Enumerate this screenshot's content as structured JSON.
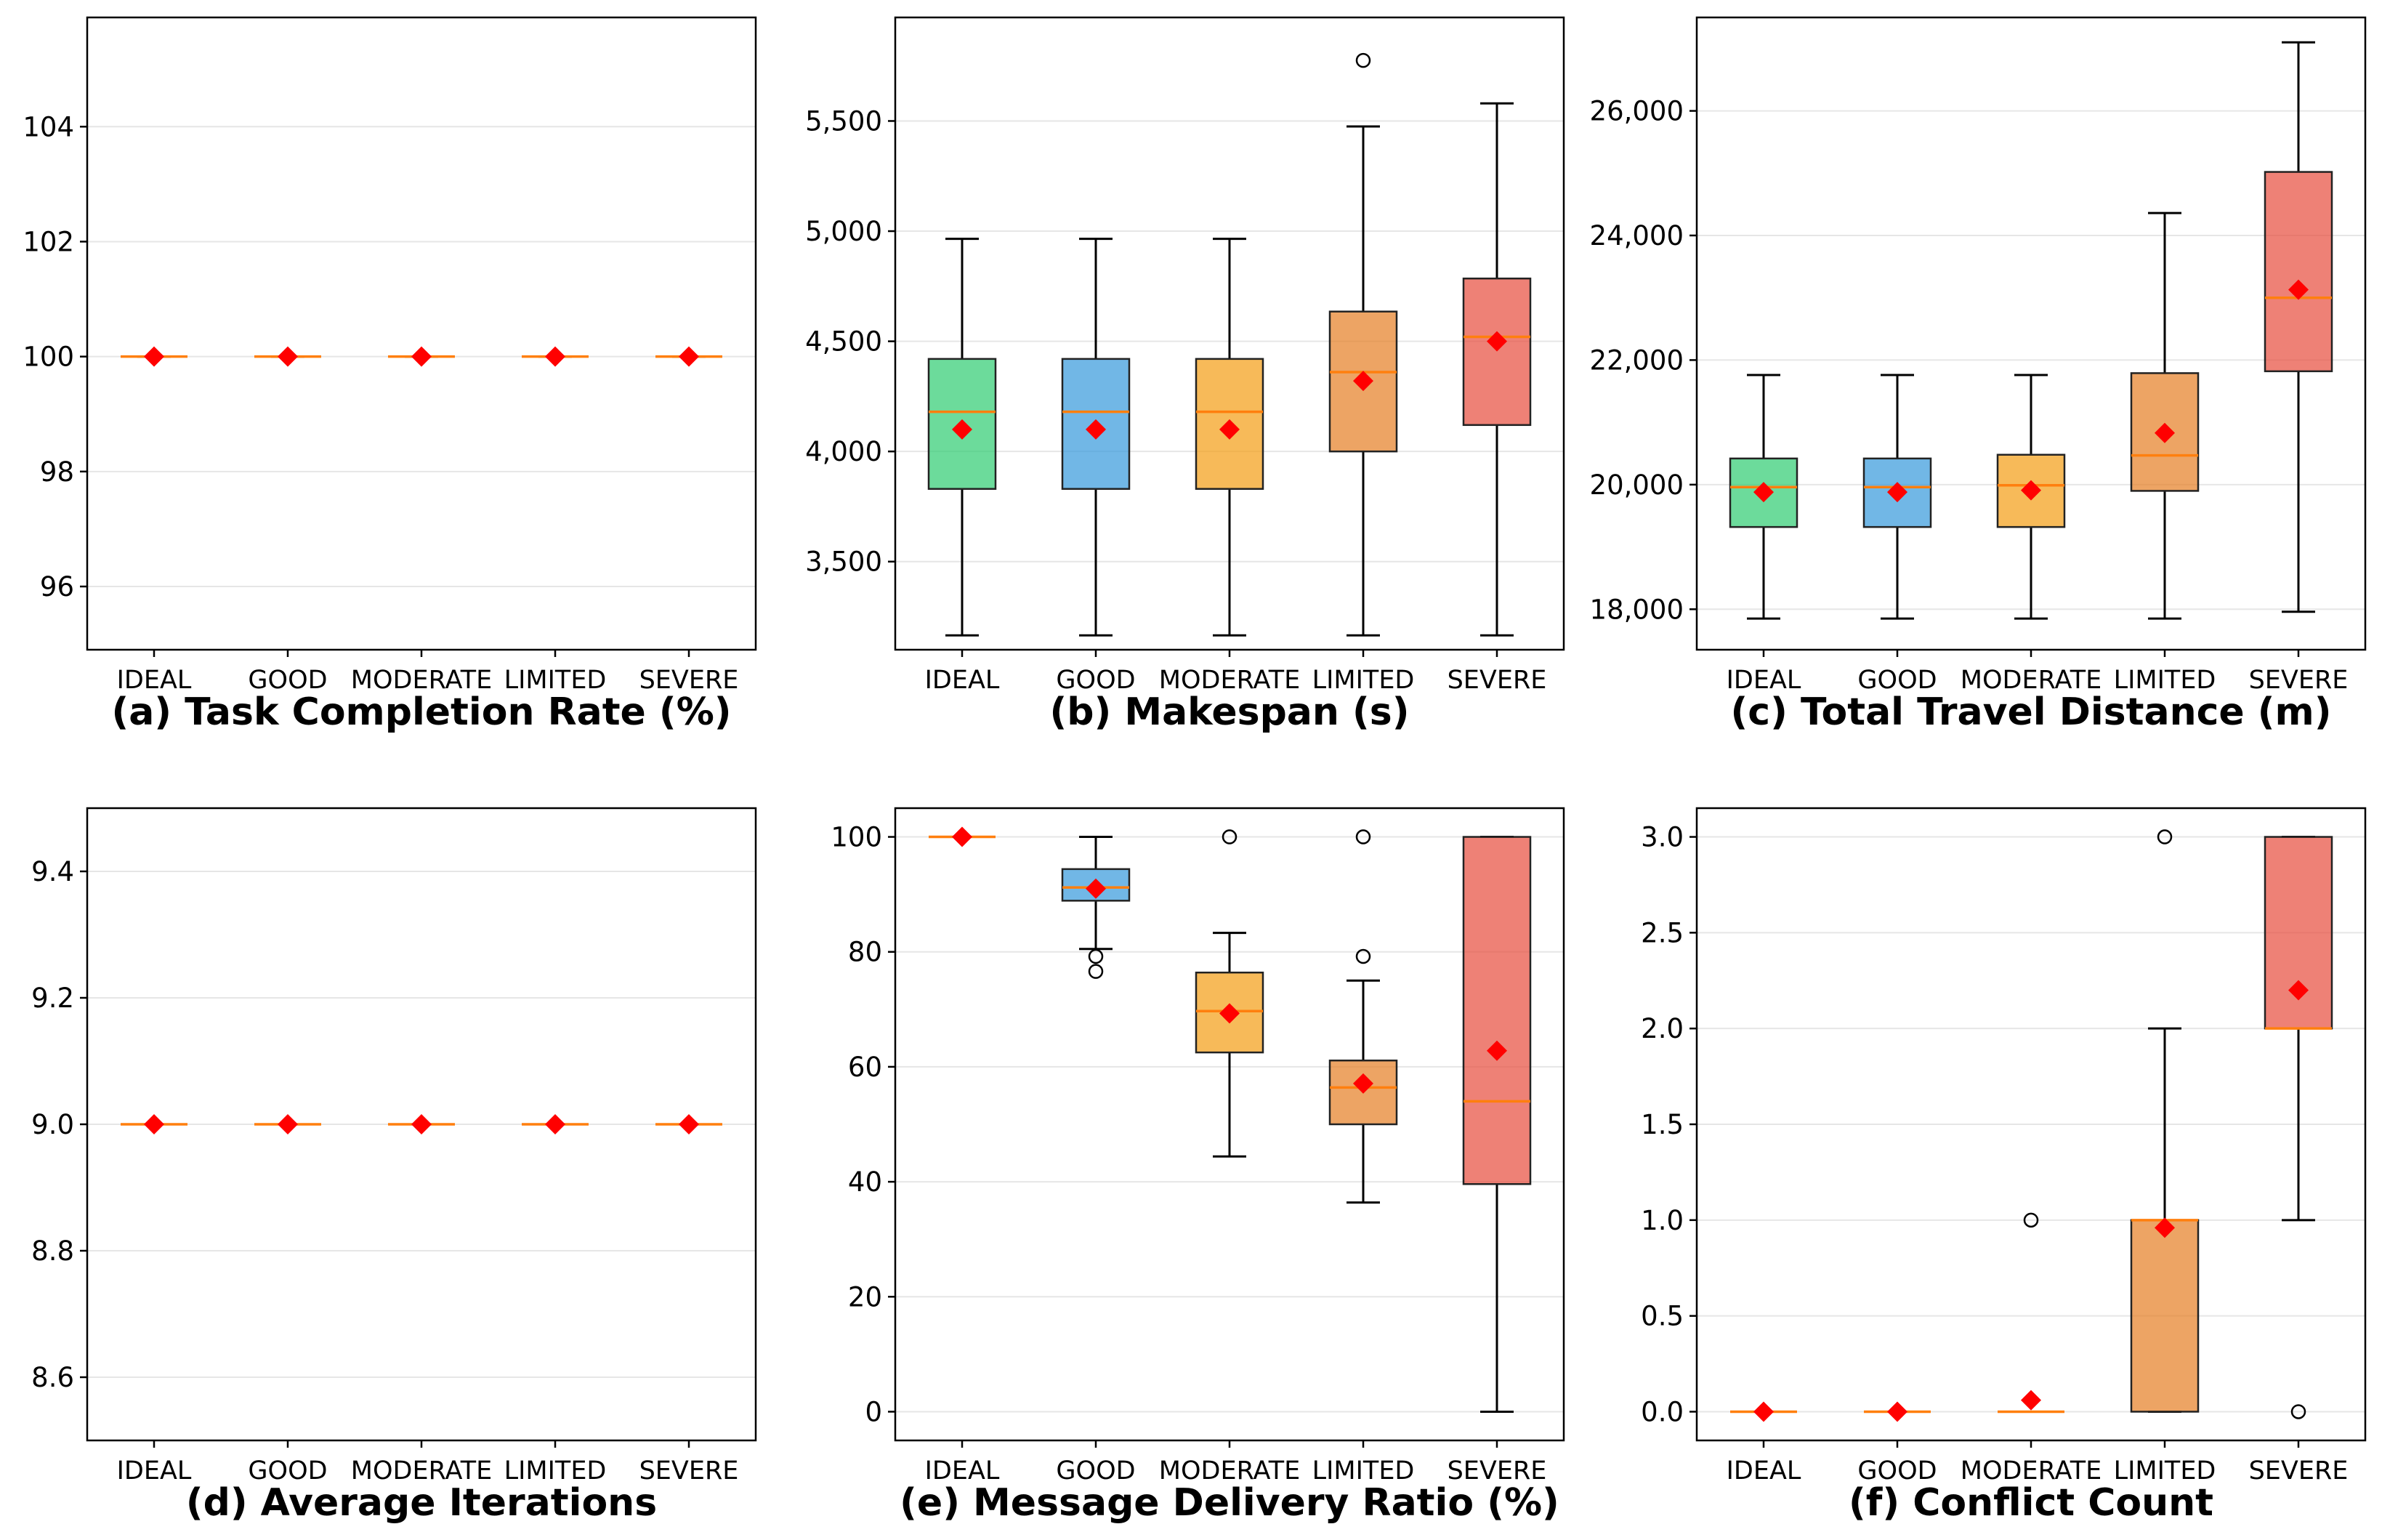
{
  "chart_data": [
    {
      "type": "box",
      "title": "(a) Task Completion Rate (%)",
      "categories": [
        "IDEAL",
        "GOOD",
        "MODERATE",
        "LIMITED",
        "SEVERE"
      ],
      "ylim": [
        94.9,
        105.9
      ],
      "yticks": [
        96,
        98,
        100,
        102,
        104
      ],
      "ytick_labels": [
        "96",
        "98",
        "100",
        "102",
        "104"
      ],
      "colors": [
        "#2ecc71",
        "#3498db",
        "#f39c12",
        "#e67e22",
        "#e74c3c"
      ],
      "boxes": [
        {
          "whislo": 100,
          "q1": 100,
          "med": 100,
          "q3": 100,
          "whishi": 100,
          "mean": 100,
          "fliers": []
        },
        {
          "whislo": 100,
          "q1": 100,
          "med": 100,
          "q3": 100,
          "whishi": 100,
          "mean": 100,
          "fliers": []
        },
        {
          "whislo": 100,
          "q1": 100,
          "med": 100,
          "q3": 100,
          "whishi": 100,
          "mean": 100,
          "fliers": []
        },
        {
          "whislo": 100,
          "q1": 100,
          "med": 100,
          "q3": 100,
          "whishi": 100,
          "mean": 100,
          "fliers": []
        },
        {
          "whislo": 100,
          "q1": 100,
          "med": 100,
          "q3": 100,
          "whishi": 100,
          "mean": 100,
          "fliers": []
        }
      ]
    },
    {
      "type": "box",
      "title": "(b) Makespan (s)",
      "categories": [
        "IDEAL",
        "GOOD",
        "MODERATE",
        "LIMITED",
        "SEVERE"
      ],
      "ylim": [
        3100,
        5970
      ],
      "yticks": [
        3500,
        4000,
        4500,
        5000,
        5500
      ],
      "ytick_labels": [
        "3,500",
        "4,000",
        "4,500",
        "5,000",
        "5,500"
      ],
      "colors": [
        "#2ecc71",
        "#3498db",
        "#f39c12",
        "#e67e22",
        "#e74c3c"
      ],
      "boxes": [
        {
          "whislo": 3165,
          "q1": 3830,
          "med": 4180,
          "q3": 4420,
          "whishi": 4965,
          "mean": 4100,
          "fliers": []
        },
        {
          "whislo": 3165,
          "q1": 3830,
          "med": 4180,
          "q3": 4420,
          "whishi": 4965,
          "mean": 4100,
          "fliers": []
        },
        {
          "whislo": 3165,
          "q1": 3830,
          "med": 4180,
          "q3": 4420,
          "whishi": 4965,
          "mean": 4100,
          "fliers": []
        },
        {
          "whislo": 3165,
          "q1": 4000,
          "med": 4360,
          "q3": 4635,
          "whishi": 5475,
          "mean": 4320,
          "fliers": [
            5775
          ]
        },
        {
          "whislo": 3165,
          "q1": 4120,
          "med": 4520,
          "q3": 4785,
          "whishi": 5580,
          "mean": 4500,
          "fliers": []
        }
      ]
    },
    {
      "type": "box",
      "title": "(c) Total Travel Distance (m)",
      "categories": [
        "IDEAL",
        "GOOD",
        "MODERATE",
        "LIMITED",
        "SEVERE"
      ],
      "ylim": [
        17350,
        27500
      ],
      "yticks": [
        18000,
        20000,
        22000,
        24000,
        26000
      ],
      "ytick_labels": [
        "18,000",
        "20,000",
        "22,000",
        "24,000",
        "26,000"
      ],
      "colors": [
        "#2ecc71",
        "#3498db",
        "#f39c12",
        "#e67e22",
        "#e74c3c"
      ],
      "boxes": [
        {
          "whislo": 17850,
          "q1": 19320,
          "med": 19960,
          "q3": 20420,
          "whishi": 21760,
          "mean": 19880,
          "fliers": []
        },
        {
          "whislo": 17850,
          "q1": 19320,
          "med": 19960,
          "q3": 20420,
          "whishi": 21760,
          "mean": 19880,
          "fliers": []
        },
        {
          "whislo": 17850,
          "q1": 19320,
          "med": 19990,
          "q3": 20480,
          "whishi": 21760,
          "mean": 19910,
          "fliers": []
        },
        {
          "whislo": 17850,
          "q1": 19900,
          "med": 20470,
          "q3": 21790,
          "whishi": 24360,
          "mean": 20830,
          "fliers": []
        },
        {
          "whislo": 17960,
          "q1": 21820,
          "med": 23000,
          "q3": 25020,
          "whishi": 27100,
          "mean": 23130,
          "fliers": []
        }
      ]
    },
    {
      "type": "box",
      "title": "(d) Average Iterations",
      "categories": [
        "IDEAL",
        "GOOD",
        "MODERATE",
        "LIMITED",
        "SEVERE"
      ],
      "ylim": [
        8.5,
        9.5
      ],
      "yticks": [
        8.6,
        8.8,
        9.0,
        9.2,
        9.4
      ],
      "ytick_labels": [
        "8.6",
        "8.8",
        "9.0",
        "9.2",
        "9.4"
      ],
      "colors": [
        "#2ecc71",
        "#3498db",
        "#f39c12",
        "#e67e22",
        "#e74c3c"
      ],
      "boxes": [
        {
          "whislo": 9,
          "q1": 9,
          "med": 9,
          "q3": 9,
          "whishi": 9,
          "mean": 9,
          "fliers": []
        },
        {
          "whislo": 9,
          "q1": 9,
          "med": 9,
          "q3": 9,
          "whishi": 9,
          "mean": 9,
          "fliers": []
        },
        {
          "whislo": 9,
          "q1": 9,
          "med": 9,
          "q3": 9,
          "whishi": 9,
          "mean": 9,
          "fliers": []
        },
        {
          "whislo": 9,
          "q1": 9,
          "med": 9,
          "q3": 9,
          "whishi": 9,
          "mean": 9,
          "fliers": []
        },
        {
          "whislo": 9,
          "q1": 9,
          "med": 9,
          "q3": 9,
          "whishi": 9,
          "mean": 9,
          "fliers": []
        }
      ]
    },
    {
      "type": "box",
      "title": "(e) Message Delivery Ratio (%)",
      "categories": [
        "IDEAL",
        "GOOD",
        "MODERATE",
        "LIMITED",
        "SEVERE"
      ],
      "ylim": [
        -5,
        105
      ],
      "yticks": [
        0,
        20,
        40,
        60,
        80,
        100
      ],
      "ytick_labels": [
        "0",
        "20",
        "40",
        "60",
        "80",
        "100"
      ],
      "colors": [
        "#2ecc71",
        "#3498db",
        "#f39c12",
        "#e67e22",
        "#e74c3c"
      ],
      "boxes": [
        {
          "whislo": 100,
          "q1": 100,
          "med": 100,
          "q3": 100,
          "whishi": 100,
          "mean": 100,
          "fliers": []
        },
        {
          "whislo": 80.5,
          "q1": 88.9,
          "med": 91.2,
          "q3": 94.4,
          "whishi": 100,
          "mean": 91,
          "fliers": [
            79.2,
            76.6
          ]
        },
        {
          "whislo": 44.4,
          "q1": 62.5,
          "med": 69.7,
          "q3": 76.4,
          "whishi": 83.3,
          "mean": 69.3,
          "fliers": [
            100
          ]
        },
        {
          "whislo": 36.4,
          "q1": 50,
          "med": 56.4,
          "q3": 61.1,
          "whishi": 75,
          "mean": 57.1,
          "fliers": [
            100,
            79.2
          ]
        },
        {
          "whislo": 0,
          "q1": 39.6,
          "med": 54,
          "q3": 100,
          "whishi": 100,
          "mean": 62.8,
          "fliers": []
        }
      ]
    },
    {
      "type": "box",
      "title": "(f) Conflict Count",
      "categories": [
        "IDEAL",
        "GOOD",
        "MODERATE",
        "LIMITED",
        "SEVERE"
      ],
      "ylim": [
        -0.15,
        3.15
      ],
      "yticks": [
        0.0,
        0.5,
        1.0,
        1.5,
        2.0,
        2.5,
        3.0
      ],
      "ytick_labels": [
        "0.0",
        "0.5",
        "1.0",
        "1.5",
        "2.0",
        "2.5",
        "3.0"
      ],
      "colors": [
        "#2ecc71",
        "#3498db",
        "#f39c12",
        "#e67e22",
        "#e74c3c"
      ],
      "boxes": [
        {
          "whislo": 0,
          "q1": 0,
          "med": 0,
          "q3": 0,
          "whishi": 0,
          "mean": 0,
          "fliers": []
        },
        {
          "whislo": 0,
          "q1": 0,
          "med": 0,
          "q3": 0,
          "whishi": 0,
          "mean": 0,
          "fliers": []
        },
        {
          "whislo": 0,
          "q1": 0,
          "med": 0,
          "q3": 0,
          "whishi": 0,
          "mean": 0.06,
          "fliers": [
            1
          ]
        },
        {
          "whislo": 0,
          "q1": 0,
          "med": 1,
          "q3": 1,
          "whishi": 2,
          "mean": 0.96,
          "fliers": [
            3
          ]
        },
        {
          "whislo": 1,
          "q1": 2,
          "med": 2,
          "q3": 3,
          "whishi": 3,
          "mean": 2.2,
          "fliers": [
            0
          ]
        }
      ]
    }
  ]
}
